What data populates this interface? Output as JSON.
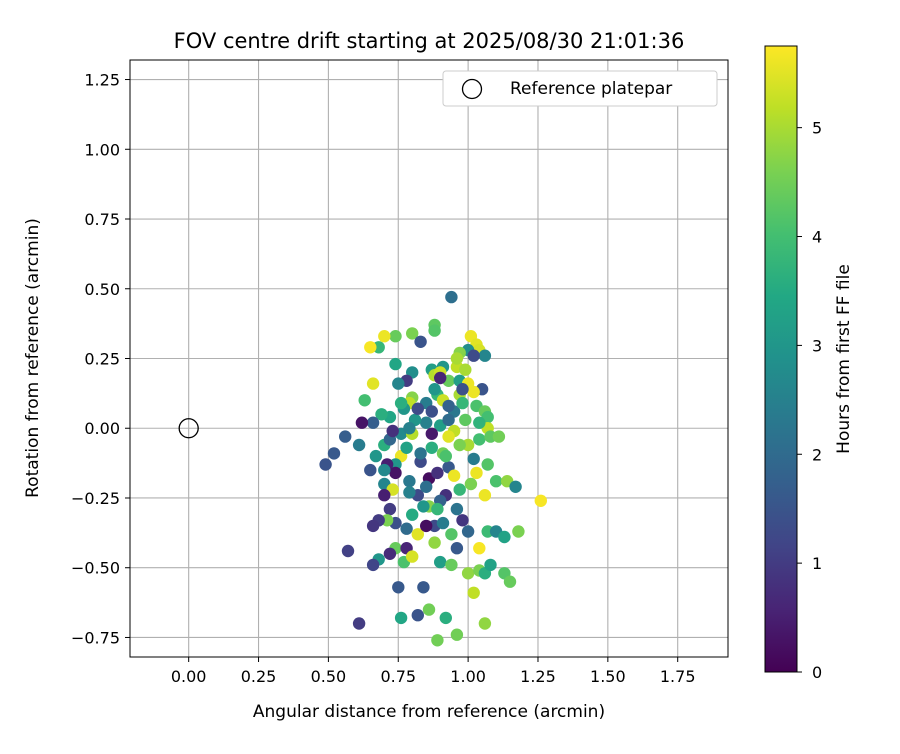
{
  "chart_data": {
    "type": "scatter",
    "title": "FOV centre drift starting at 2025/08/30 21:01:36",
    "xlabel": "Angular distance from reference (arcmin)",
    "ylabel": "Rotation from reference (arcmin)",
    "xlim": [
      -0.21,
      1.93
    ],
    "ylim": [
      -0.82,
      1.32
    ],
    "xticks": [
      "0.00",
      "0.25",
      "0.50",
      "0.75",
      "1.00",
      "1.25",
      "1.50",
      "1.75"
    ],
    "yticks": [
      "−0.75",
      "−0.50",
      "−0.25",
      "0.00",
      "0.25",
      "0.50",
      "0.75",
      "1.00",
      "1.25"
    ],
    "grid": true,
    "legend": {
      "placement": "top-right",
      "entries": [
        {
          "label": "Reference platepar",
          "marker": "open-circle"
        }
      ]
    },
    "reference_point": {
      "x": 0.0,
      "y": 0.0,
      "color": "#000000"
    },
    "colorbar": {
      "label": "Hours from first FF file",
      "range": [
        0,
        5.75
      ],
      "ticks": [
        "0",
        "1",
        "2",
        "3",
        "4",
        "5"
      ],
      "colormap": "viridis"
    },
    "series": [
      {
        "columns": [
          "x",
          "y",
          "hours"
        ],
        "points": [
          [
            0.94,
            0.47,
            2.1
          ],
          [
            0.68,
            0.29,
            3.8
          ],
          [
            0.74,
            0.33,
            4.4
          ],
          [
            0.8,
            0.34,
            4.6
          ],
          [
            0.88,
            0.37,
            4.3
          ],
          [
            0.88,
            0.35,
            4.2
          ],
          [
            0.7,
            0.33,
            5.6
          ],
          [
            0.65,
            0.29,
            5.7
          ],
          [
            1.01,
            0.33,
            5.6
          ],
          [
            1.03,
            0.3,
            5.5
          ],
          [
            1.04,
            0.28,
            5.4
          ],
          [
            1.0,
            0.28,
            2.8
          ],
          [
            1.06,
            0.26,
            2.6
          ],
          [
            0.97,
            0.27,
            4.7
          ],
          [
            0.83,
            0.31,
            1.5
          ],
          [
            0.74,
            0.23,
            3.4
          ],
          [
            0.91,
            0.22,
            3.0
          ],
          [
            0.96,
            0.22,
            5.2
          ],
          [
            0.99,
            0.21,
            5.0
          ],
          [
            0.87,
            0.21,
            3.2
          ],
          [
            0.8,
            0.2,
            2.8
          ],
          [
            0.78,
            0.17,
            1.0
          ],
          [
            0.75,
            0.16,
            2.6
          ],
          [
            0.66,
            0.16,
            5.5
          ],
          [
            0.88,
            0.19,
            5.1
          ],
          [
            0.9,
            0.2,
            5.3
          ],
          [
            0.93,
            0.17,
            4.4
          ],
          [
            0.97,
            0.17,
            3.2
          ],
          [
            1.0,
            0.16,
            5.6
          ],
          [
            1.05,
            0.14,
            1.5
          ],
          [
            1.02,
            0.13,
            5.6
          ],
          [
            0.97,
            0.12,
            5.0
          ],
          [
            0.89,
            0.12,
            3.8
          ],
          [
            0.88,
            0.14,
            3.0
          ],
          [
            0.8,
            0.11,
            4.7
          ],
          [
            0.79,
            0.09,
            5.2
          ],
          [
            0.77,
            0.07,
            3.0
          ],
          [
            0.76,
            0.09,
            3.6
          ],
          [
            0.63,
            0.1,
            4.0
          ],
          [
            0.85,
            0.09,
            2.4
          ],
          [
            0.87,
            0.06,
            1.4
          ],
          [
            0.91,
            0.1,
            5.3
          ],
          [
            0.95,
            0.06,
            2.3
          ],
          [
            0.98,
            0.09,
            3.8
          ],
          [
            1.03,
            0.08,
            4.1
          ],
          [
            1.06,
            0.06,
            4.4
          ],
          [
            1.07,
            0.04,
            4.0
          ],
          [
            1.07,
            0.0,
            5.2
          ],
          [
            1.04,
            0.02,
            3.7
          ],
          [
            0.95,
            -0.01,
            5.2
          ],
          [
            1.0,
            -0.06,
            5.0
          ],
          [
            0.93,
            -0.03,
            5.5
          ],
          [
            0.9,
            0.01,
            3.2
          ],
          [
            0.85,
            0.02,
            2.5
          ],
          [
            0.81,
            0.03,
            3.0
          ],
          [
            0.72,
            0.04,
            3.4
          ],
          [
            0.69,
            0.05,
            3.6
          ],
          [
            0.66,
            0.02,
            1.7
          ],
          [
            0.62,
            0.02,
            0.3
          ],
          [
            0.56,
            -0.03,
            1.7
          ],
          [
            0.52,
            -0.09,
            1.6
          ],
          [
            0.49,
            -0.13,
            1.5
          ],
          [
            0.61,
            -0.06,
            2.4
          ],
          [
            0.7,
            -0.06,
            3.6
          ],
          [
            0.72,
            -0.04,
            1.9
          ],
          [
            0.76,
            -0.02,
            2.7
          ],
          [
            0.8,
            -0.02,
            5.1
          ],
          [
            0.87,
            -0.07,
            3.6
          ],
          [
            0.91,
            -0.09,
            4.5
          ],
          [
            0.97,
            -0.06,
            4.6
          ],
          [
            1.04,
            -0.04,
            4.0
          ],
          [
            1.08,
            -0.03,
            4.3
          ],
          [
            1.11,
            -0.03,
            4.5
          ],
          [
            0.76,
            -0.1,
            5.6
          ],
          [
            0.74,
            -0.13,
            3.0
          ],
          [
            0.67,
            -0.1,
            3.0
          ],
          [
            0.65,
            -0.15,
            1.5
          ],
          [
            0.71,
            -0.13,
            0.5
          ],
          [
            0.7,
            -0.2,
            2.6
          ],
          [
            0.74,
            -0.16,
            0.3
          ],
          [
            0.79,
            -0.19,
            2.3
          ],
          [
            0.83,
            -0.12,
            1.3
          ],
          [
            0.86,
            -0.18,
            0.2
          ],
          [
            0.89,
            -0.16,
            0.8
          ],
          [
            0.93,
            -0.14,
            1.6
          ],
          [
            0.95,
            -0.17,
            5.6
          ],
          [
            1.03,
            -0.16,
            5.6
          ],
          [
            1.01,
            -0.2,
            4.6
          ],
          [
            1.07,
            -0.13,
            4.2
          ],
          [
            1.1,
            -0.19,
            4.1
          ],
          [
            1.14,
            -0.19,
            4.8
          ],
          [
            1.17,
            -0.21,
            2.6
          ],
          [
            1.26,
            -0.26,
            5.7
          ],
          [
            1.06,
            -0.24,
            5.6
          ],
          [
            0.97,
            -0.22,
            3.8
          ],
          [
            0.92,
            -0.24,
            0.8
          ],
          [
            0.9,
            -0.26,
            1.8
          ],
          [
            0.86,
            -0.28,
            4.7
          ],
          [
            0.84,
            -0.28,
            3.0
          ],
          [
            0.82,
            -0.24,
            1.3
          ],
          [
            0.79,
            -0.23,
            2.5
          ],
          [
            0.73,
            -0.22,
            5.4
          ],
          [
            0.7,
            -0.24,
            0.5
          ],
          [
            0.72,
            -0.29,
            1.0
          ],
          [
            0.74,
            -0.34,
            1.4
          ],
          [
            0.78,
            -0.36,
            2.0
          ],
          [
            0.71,
            -0.33,
            4.6
          ],
          [
            0.68,
            -0.33,
            1.0
          ],
          [
            0.66,
            -0.35,
            0.9
          ],
          [
            0.74,
            -0.43,
            4.4
          ],
          [
            0.78,
            -0.43,
            0.6
          ],
          [
            0.77,
            -0.48,
            4.1
          ],
          [
            0.72,
            -0.45,
            0.7
          ],
          [
            0.68,
            -0.47,
            3.0
          ],
          [
            0.66,
            -0.49,
            1.2
          ],
          [
            0.8,
            -0.46,
            5.4
          ],
          [
            0.82,
            -0.38,
            5.5
          ],
          [
            0.88,
            -0.35,
            1.3
          ],
          [
            0.91,
            -0.34,
            2.4
          ],
          [
            0.94,
            -0.38,
            4.2
          ],
          [
            0.96,
            -0.43,
            1.6
          ],
          [
            0.88,
            -0.41,
            4.8
          ],
          [
            0.9,
            -0.48,
            3.2
          ],
          [
            0.94,
            -0.49,
            4.4
          ],
          [
            1.0,
            -0.52,
            4.8
          ],
          [
            1.04,
            -0.51,
            4.6
          ],
          [
            1.06,
            -0.52,
            3.6
          ],
          [
            1.08,
            -0.49,
            3.3
          ],
          [
            1.07,
            -0.37,
            3.9
          ],
          [
            1.1,
            -0.37,
            2.6
          ],
          [
            1.13,
            -0.39,
            3.3
          ],
          [
            1.18,
            -0.37,
            4.6
          ],
          [
            1.13,
            -0.52,
            4.2
          ],
          [
            1.15,
            -0.55,
            4.4
          ],
          [
            1.02,
            -0.59,
            5.2
          ],
          [
            1.04,
            -0.43,
            5.7
          ],
          [
            0.57,
            -0.44,
            1.1
          ],
          [
            0.84,
            -0.57,
            1.6
          ],
          [
            0.75,
            -0.57,
            1.6
          ],
          [
            0.61,
            -0.7,
            1.0
          ],
          [
            0.82,
            -0.67,
            1.5
          ],
          [
            0.86,
            -0.65,
            4.5
          ],
          [
            0.92,
            -0.68,
            3.6
          ],
          [
            0.89,
            -0.76,
            4.5
          ],
          [
            0.96,
            -0.74,
            4.5
          ],
          [
            1.06,
            -0.7,
            4.8
          ],
          [
            0.76,
            -0.68,
            3.4
          ],
          [
            0.96,
            0.25,
            5.0
          ],
          [
            0.82,
            0.07,
            1.3
          ],
          [
            0.87,
            -0.02,
            0.4
          ],
          [
            0.93,
            0.03,
            2.0
          ],
          [
            0.99,
            0.03,
            4.3
          ],
          [
            0.83,
            -0.09,
            2.2
          ],
          [
            0.78,
            -0.07,
            3.3
          ],
          [
            0.96,
            -0.29,
            2.2
          ],
          [
            0.98,
            -0.33,
            0.9
          ],
          [
            1.0,
            -0.37,
            1.9
          ],
          [
            0.85,
            -0.35,
            0.2
          ],
          [
            0.89,
            -0.29,
            3.8
          ],
          [
            0.8,
            -0.31,
            3.5
          ],
          [
            0.98,
            0.14,
            1.4
          ],
          [
            0.93,
            0.08,
            1.8
          ],
          [
            0.79,
            0.0,
            2.5
          ],
          [
            0.73,
            -0.01,
            0.8
          ],
          [
            0.7,
            -0.15,
            2.7
          ],
          [
            0.92,
            -0.1,
            4.1
          ],
          [
            0.85,
            -0.21,
            2.1
          ],
          [
            1.02,
            -0.11,
            2.4
          ],
          [
            1.02,
            0.26,
            1.3
          ],
          [
            0.9,
            0.18,
            0.6
          ]
        ]
      }
    ]
  }
}
